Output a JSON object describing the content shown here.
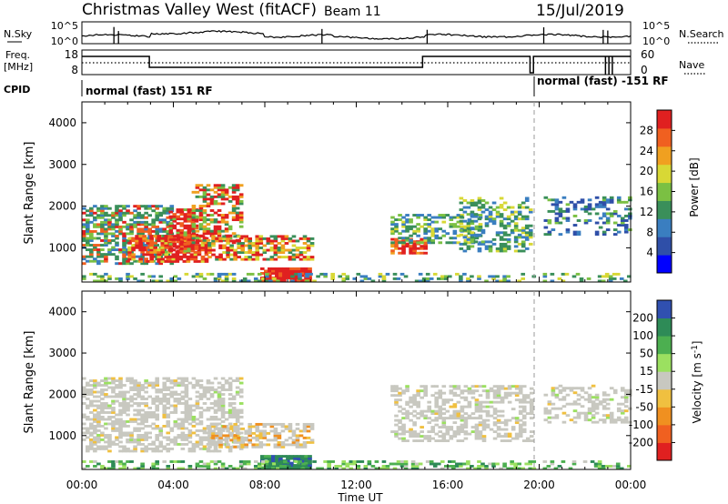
{
  "header": {
    "station": "Christmas Valley West (fitACF)",
    "beam": "Beam 11",
    "date": "15/Jul/2019"
  },
  "params": {
    "nsky_label": "N.Sky",
    "nsky_ticks": [
      "10^5",
      "10^0"
    ],
    "nsearch_label": "N.Search",
    "nsearch_ticks": [
      "10^5",
      "10^0"
    ],
    "freq_label_1": "Freq.",
    "freq_label_2": "[MHz]",
    "freq_ticks": [
      "18",
      "8"
    ],
    "nave_label": "Nave",
    "nave_ticks": [
      "60",
      "0"
    ],
    "cpid_label": "CPID",
    "cpid_left": "normal (fast) 151 RF",
    "cpid_right": "normal (fast) -151 RF"
  },
  "time_axis": {
    "label": "Time UT",
    "ticks": [
      "00:00",
      "04:00",
      "08:00",
      "12:00",
      "16:00",
      "20:00",
      "00:00"
    ]
  },
  "chart_data": [
    {
      "type": "heatmap",
      "title": "",
      "xlabel": "Time UT",
      "ylabel": "Slant Range [km]",
      "x_ticks": [
        "00:00",
        "04:00",
        "08:00",
        "12:00",
        "16:00",
        "20:00",
        "00:00"
      ],
      "y_ticks": [
        1000,
        2000,
        3000,
        4000
      ],
      "ylim": [
        180,
        4500
      ],
      "colorbar": {
        "label": "Power [dB]",
        "ticks": [
          "28",
          "24",
          "20",
          "16",
          "12",
          "8",
          "4"
        ],
        "colors": [
          "#0000ff",
          "#2f4fa8",
          "#3a7ec0",
          "#3a8f5a",
          "#7bc043",
          "#d8d835",
          "#f0a020",
          "#f06020",
          "#e02020"
        ]
      }
    },
    {
      "type": "heatmap",
      "title": "",
      "xlabel": "Time UT",
      "ylabel": "Slant Range [km]",
      "x_ticks": [
        "00:00",
        "04:00",
        "08:00",
        "12:00",
        "16:00",
        "20:00",
        "00:00"
      ],
      "y_ticks": [
        1000,
        2000,
        3000,
        4000
      ],
      "ylim": [
        180,
        4500
      ],
      "colorbar": {
        "label": "Velocity [m s^-1]",
        "ticks": [
          "200",
          "100",
          "50",
          "15",
          "-15",
          "-50",
          "-100",
          "-200"
        ],
        "colors": [
          "#e02020",
          "#f06020",
          "#f09020",
          "#f0c040",
          "#c8c8c0",
          "#9be060",
          "#4caf50",
          "#2e8b57",
          "#3050b0"
        ]
      }
    }
  ]
}
